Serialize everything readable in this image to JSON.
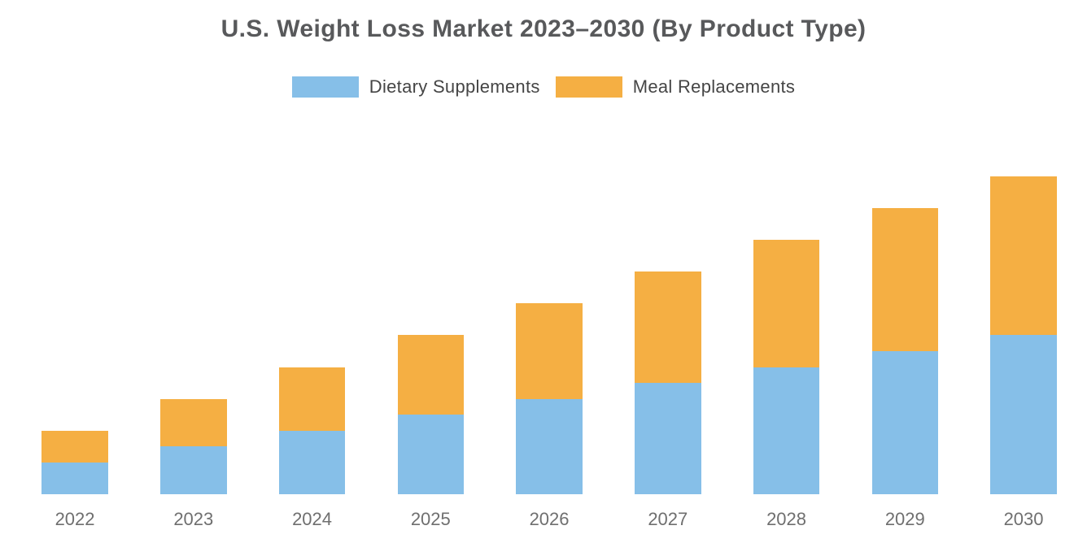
{
  "title": "U.S. Weight Loss Market 2023–2030 (By Product Type)",
  "legend": {
    "items": [
      {
        "label": "Dietary Supplements",
        "color": "#86BFE8"
      },
      {
        "label": "Meal Replacements",
        "color": "#F5AF43"
      }
    ],
    "position": "top"
  },
  "colors": {
    "background": "#FFFFFF",
    "title_text": "#58595B",
    "legend_text": "#454545",
    "axis_tick_text": "#6F6F6F",
    "dietary_supplements": "#86BFE8",
    "meal_replacements": "#F5AF43"
  },
  "chart_data": {
    "type": "bar",
    "stacked": true,
    "title": "U.S. Weight Loss Market 2023–2030 (By Product Type)",
    "categories": [
      "2022",
      "2023",
      "2024",
      "2025",
      "2026",
      "2027",
      "2028",
      "2029",
      "2030"
    ],
    "series": [
      {
        "name": "Dietary Supplements",
        "color": "#86BFE8",
        "values": [
          4,
          6,
          8,
          10,
          12,
          14,
          16,
          18,
          20
        ]
      },
      {
        "name": "Meal Replacements",
        "color": "#F5AF43",
        "values": [
          4,
          6,
          8,
          10,
          12,
          14,
          16,
          18,
          20
        ]
      }
    ],
    "totals": [
      8,
      12,
      16,
      20,
      24,
      28,
      32,
      36,
      40
    ],
    "xlabel": "",
    "ylabel": "",
    "ylim": [
      0,
      45
    ],
    "y_axis_visible": false,
    "x_axis_line_visible": false,
    "grid": false,
    "legend_position": "top"
  }
}
